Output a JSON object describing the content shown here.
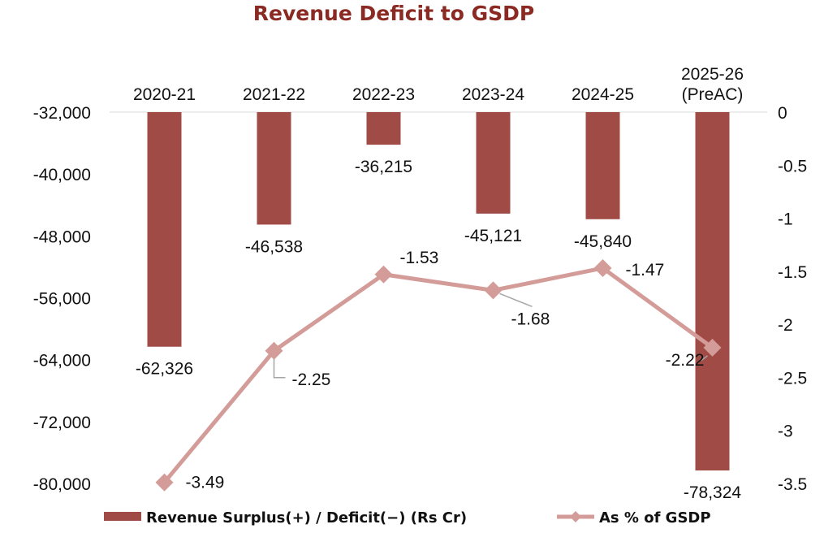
{
  "colors": {
    "bar": "#A04B46",
    "line": "#D49C98",
    "title": "#8B2A22",
    "text": "#111111",
    "leader": "#A6A6A6"
  },
  "chart_data": {
    "type": "bar",
    "title": "Revenue Deficit to GSDP",
    "categories": [
      "2020-21",
      "2021-22",
      "2022-23",
      "2023-24",
      "2024-25",
      "2025-26 (PreAC)"
    ],
    "category_lines": [
      [
        "2020-21"
      ],
      [
        "2021-22"
      ],
      [
        "2022-23"
      ],
      [
        "2023-24"
      ],
      [
        "2024-25"
      ],
      [
        "2025-26",
        "(PreAC)"
      ]
    ],
    "series": [
      {
        "name": "Revenue Surplus(+) / Deficit(−) (Rs Cr)",
        "type": "bar",
        "axis": "left",
        "values": [
          -62326,
          -46538,
          -36215,
          -45121,
          -45840,
          -78324
        ],
        "labels": [
          "-62,326",
          "-46,538",
          "-36,215",
          "-45,121",
          "-45,840",
          "-78,324"
        ]
      },
      {
        "name": "As % of GSDP",
        "type": "line",
        "marker": "diamond",
        "axis": "right",
        "values": [
          -3.49,
          -2.25,
          -1.53,
          -1.68,
          -1.47,
          -2.22
        ],
        "labels": [
          "-3.49",
          "-2.25",
          "-1.53",
          "-1.68",
          "-1.47",
          "-2.22"
        ]
      }
    ],
    "y_left": {
      "range": [
        -80000,
        -32000
      ],
      "ticks": [
        -32000,
        -40000,
        -48000,
        -56000,
        -64000,
        -72000,
        -80000
      ],
      "tick_labels": [
        "-32,000",
        "-40,000",
        "-48,000",
        "-56,000",
        "-64,000",
        "-72,000",
        "-80,000"
      ]
    },
    "y_right": {
      "range": [
        -3.5,
        0
      ],
      "ticks": [
        0,
        -0.5,
        -1,
        -1.5,
        -2,
        -2.5,
        -3,
        -3.5
      ],
      "tick_labels": [
        "0",
        "-0.5",
        "-1",
        "-1.5",
        "-2",
        "-2.5",
        "-3",
        "-3.5"
      ]
    },
    "x_axis_position": "top",
    "grid": false,
    "legend_position": "bottom"
  }
}
